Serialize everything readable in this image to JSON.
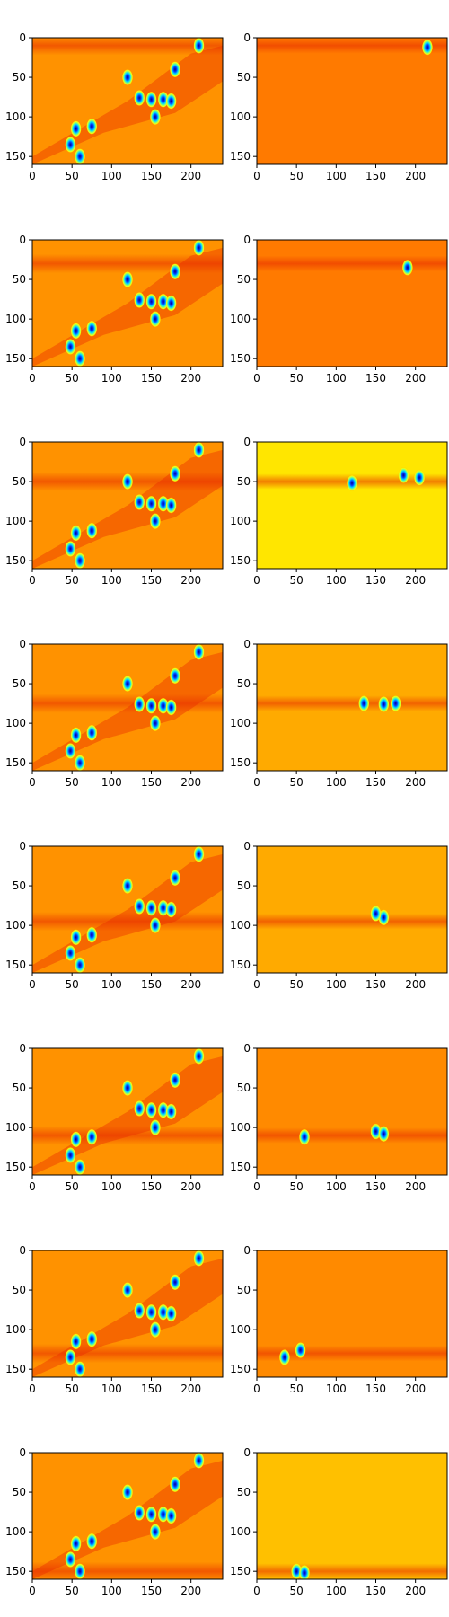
{
  "chart_data": {
    "type": "heatmap",
    "colormap": "jet",
    "grid": false,
    "rows": 8,
    "columns": 2,
    "image_width": 240,
    "image_height": 160,
    "xlim": [
      0,
      240
    ],
    "ylim": [
      160,
      0
    ],
    "x_ticks": [
      0,
      50,
      100,
      150,
      200
    ],
    "y_ticks": [
      0,
      50,
      100,
      150
    ],
    "x_tick_labels": [
      "0",
      "50",
      "100",
      "150",
      "200"
    ],
    "y_tick_labels": [
      "0",
      "50",
      "100",
      "150"
    ],
    "background_color": "#ff9a00",
    "left_column": {
      "background": "#ff9200",
      "blob_positions": [
        [
          60,
          150
        ],
        [
          55,
          115
        ],
        [
          75,
          112
        ],
        [
          48,
          135
        ],
        [
          120,
          50
        ],
        [
          135,
          76
        ],
        [
          150,
          78
        ],
        [
          165,
          78
        ],
        [
          155,
          100
        ],
        [
          180,
          40
        ],
        [
          175,
          80
        ],
        [
          210,
          10
        ]
      ],
      "band_y_by_row": [
        10,
        30,
        50,
        75,
        95,
        110,
        130,
        150
      ]
    },
    "right_column": [
      {
        "background": "#ff7a00",
        "band_y": 10,
        "blobs": [
          [
            215,
            12
          ]
        ]
      },
      {
        "background": "#ff7a00",
        "band_y": 30,
        "blobs": [
          [
            190,
            35
          ]
        ]
      },
      {
        "background": "#ffe600",
        "band_y": 50,
        "blobs": [
          [
            120,
            52
          ],
          [
            185,
            42
          ],
          [
            205,
            45
          ]
        ]
      },
      {
        "background": "#ffaa00",
        "band_y": 75,
        "blobs": [
          [
            135,
            75
          ],
          [
            160,
            76
          ],
          [
            175,
            75
          ]
        ]
      },
      {
        "background": "#ffaa00",
        "band_y": 95,
        "blobs": [
          [
            160,
            90
          ],
          [
            150,
            85
          ]
        ]
      },
      {
        "background": "#ff8a00",
        "band_y": 110,
        "blobs": [
          [
            60,
            112
          ],
          [
            150,
            105
          ],
          [
            160,
            108
          ]
        ]
      },
      {
        "background": "#ff8a00",
        "band_y": 130,
        "blobs": [
          [
            35,
            135
          ],
          [
            55,
            126
          ]
        ]
      },
      {
        "background": "#ffc000",
        "band_y": 150,
        "blobs": [
          [
            50,
            150
          ],
          [
            60,
            152
          ]
        ]
      }
    ]
  }
}
